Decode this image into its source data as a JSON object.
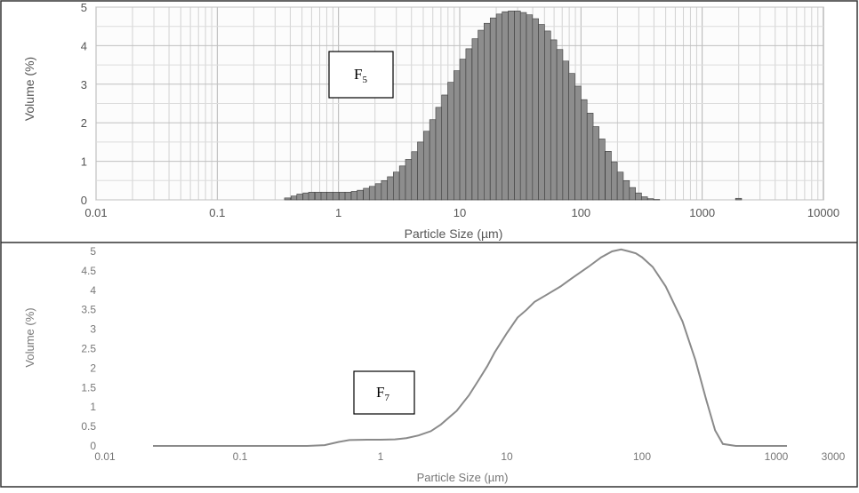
{
  "chart_data": [
    {
      "type": "bar",
      "label_box": "F",
      "label_box_sub": "5",
      "xlabel": "Particle Size (µm)",
      "ylabel": "Volume (%)",
      "x_scale": "log",
      "xlim": [
        0.01,
        10000
      ],
      "ylim": [
        0,
        5
      ],
      "x_ticks": [
        "0.01",
        "0.1",
        "1",
        "10",
        "100",
        "1000",
        "10000"
      ],
      "y_ticks": [
        "0",
        "1",
        "2",
        "3",
        "4",
        "5"
      ],
      "grid": true,
      "x_centers": [
        0.38,
        0.43,
        0.48,
        0.54,
        0.6,
        0.68,
        0.76,
        0.85,
        0.95,
        1.07,
        1.2,
        1.35,
        1.51,
        1.7,
        1.9,
        2.13,
        2.39,
        2.68,
        3.0,
        3.37,
        3.78,
        4.24,
        4.75,
        5.33,
        5.98,
        6.71,
        7.52,
        8.44,
        9.46,
        10.6,
        11.9,
        13.4,
        15.0,
        16.8,
        18.9,
        21.2,
        23.7,
        26.6,
        29.9,
        33.5,
        37.6,
        42.2,
        47.3,
        53.1,
        59.6,
        66.9,
        75.0,
        84.1,
        94.4,
        106,
        119,
        133,
        149,
        168,
        188,
        211,
        237,
        266,
        298,
        334,
        375,
        421,
        1995
      ],
      "values": [
        0.05,
        0.1,
        0.15,
        0.18,
        0.2,
        0.2,
        0.2,
        0.2,
        0.2,
        0.2,
        0.2,
        0.22,
        0.25,
        0.3,
        0.35,
        0.42,
        0.5,
        0.6,
        0.72,
        0.88,
        1.05,
        1.25,
        1.5,
        1.78,
        2.08,
        2.4,
        2.72,
        3.05,
        3.35,
        3.65,
        3.92,
        4.18,
        4.4,
        4.58,
        4.72,
        4.82,
        4.88,
        4.9,
        4.9,
        4.86,
        4.8,
        4.7,
        4.55,
        4.38,
        4.15,
        3.9,
        3.6,
        3.28,
        2.95,
        2.6,
        2.25,
        1.9,
        1.58,
        1.26,
        0.98,
        0.72,
        0.5,
        0.32,
        0.18,
        0.08,
        0.03,
        0.01,
        0.04
      ]
    },
    {
      "type": "line",
      "label_box": "F",
      "label_box_sub": "7",
      "xlabel": "Particle Size (µm)",
      "ylabel": "Volume (%)",
      "x_scale": "log",
      "xlim": [
        0.01,
        3000
      ],
      "ylim": [
        0,
        5
      ],
      "x_ticks": [
        "0.01",
        "0.1",
        "1",
        "10",
        "100",
        "1000",
        "3000"
      ],
      "y_ticks": [
        "0",
        "0.5",
        "1",
        "1.5",
        "2",
        "2.5",
        "3",
        "3.5",
        "4",
        "4.5",
        "5"
      ],
      "x": [
        0.02,
        0.1,
        0.3,
        0.4,
        0.5,
        0.6,
        0.8,
        1.0,
        1.3,
        1.6,
        2.0,
        2.5,
        3.0,
        4.0,
        5.0,
        6.0,
        7.0,
        8.0,
        10,
        12,
        14,
        16,
        20,
        25,
        30,
        40,
        50,
        60,
        70,
        80,
        90,
        100,
        120,
        150,
        200,
        250,
        300,
        350,
        400,
        500,
        1000,
        2000
      ],
      "y": [
        0.0,
        0.0,
        0.0,
        0.02,
        0.1,
        0.15,
        0.16,
        0.16,
        0.17,
        0.2,
        0.27,
        0.38,
        0.55,
        0.9,
        1.3,
        1.7,
        2.05,
        2.4,
        2.9,
        3.3,
        3.5,
        3.7,
        3.9,
        4.1,
        4.3,
        4.6,
        4.85,
        5.0,
        5.05,
        5.0,
        4.95,
        4.85,
        4.6,
        4.1,
        3.2,
        2.2,
        1.2,
        0.4,
        0.05,
        0.0,
        0.0,
        0.0
      ]
    }
  ]
}
